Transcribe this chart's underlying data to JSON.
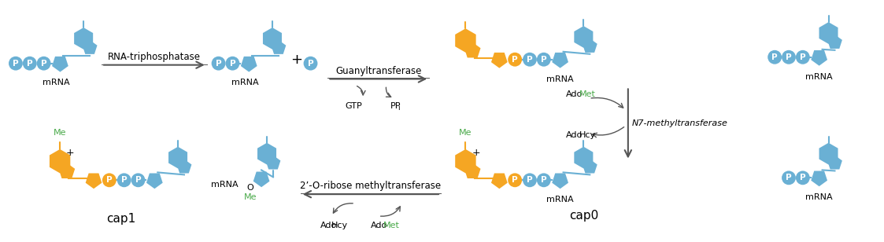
{
  "bg_color": "#ffffff",
  "blue": "#6ab0d4",
  "orange": "#f5a623",
  "green_color": "#4aaa4a",
  "arrow_color": "#555555",
  "figsize": [
    11.23,
    3.08
  ],
  "dpi": 100,
  "label_rna_triphosphatase": "RNA-triphosphatase",
  "label_guanyltransferase": "Guanyltransferase",
  "label_n7": "N7-methyltransferase",
  "label_2o": "2’-O-ribose methyltransferase",
  "label_gtp": "GTP",
  "label_ppi": "PP",
  "label_mrna": "mRNA",
  "label_cap0": "cap0",
  "label_cap1": "cap1",
  "label_me": "Me"
}
